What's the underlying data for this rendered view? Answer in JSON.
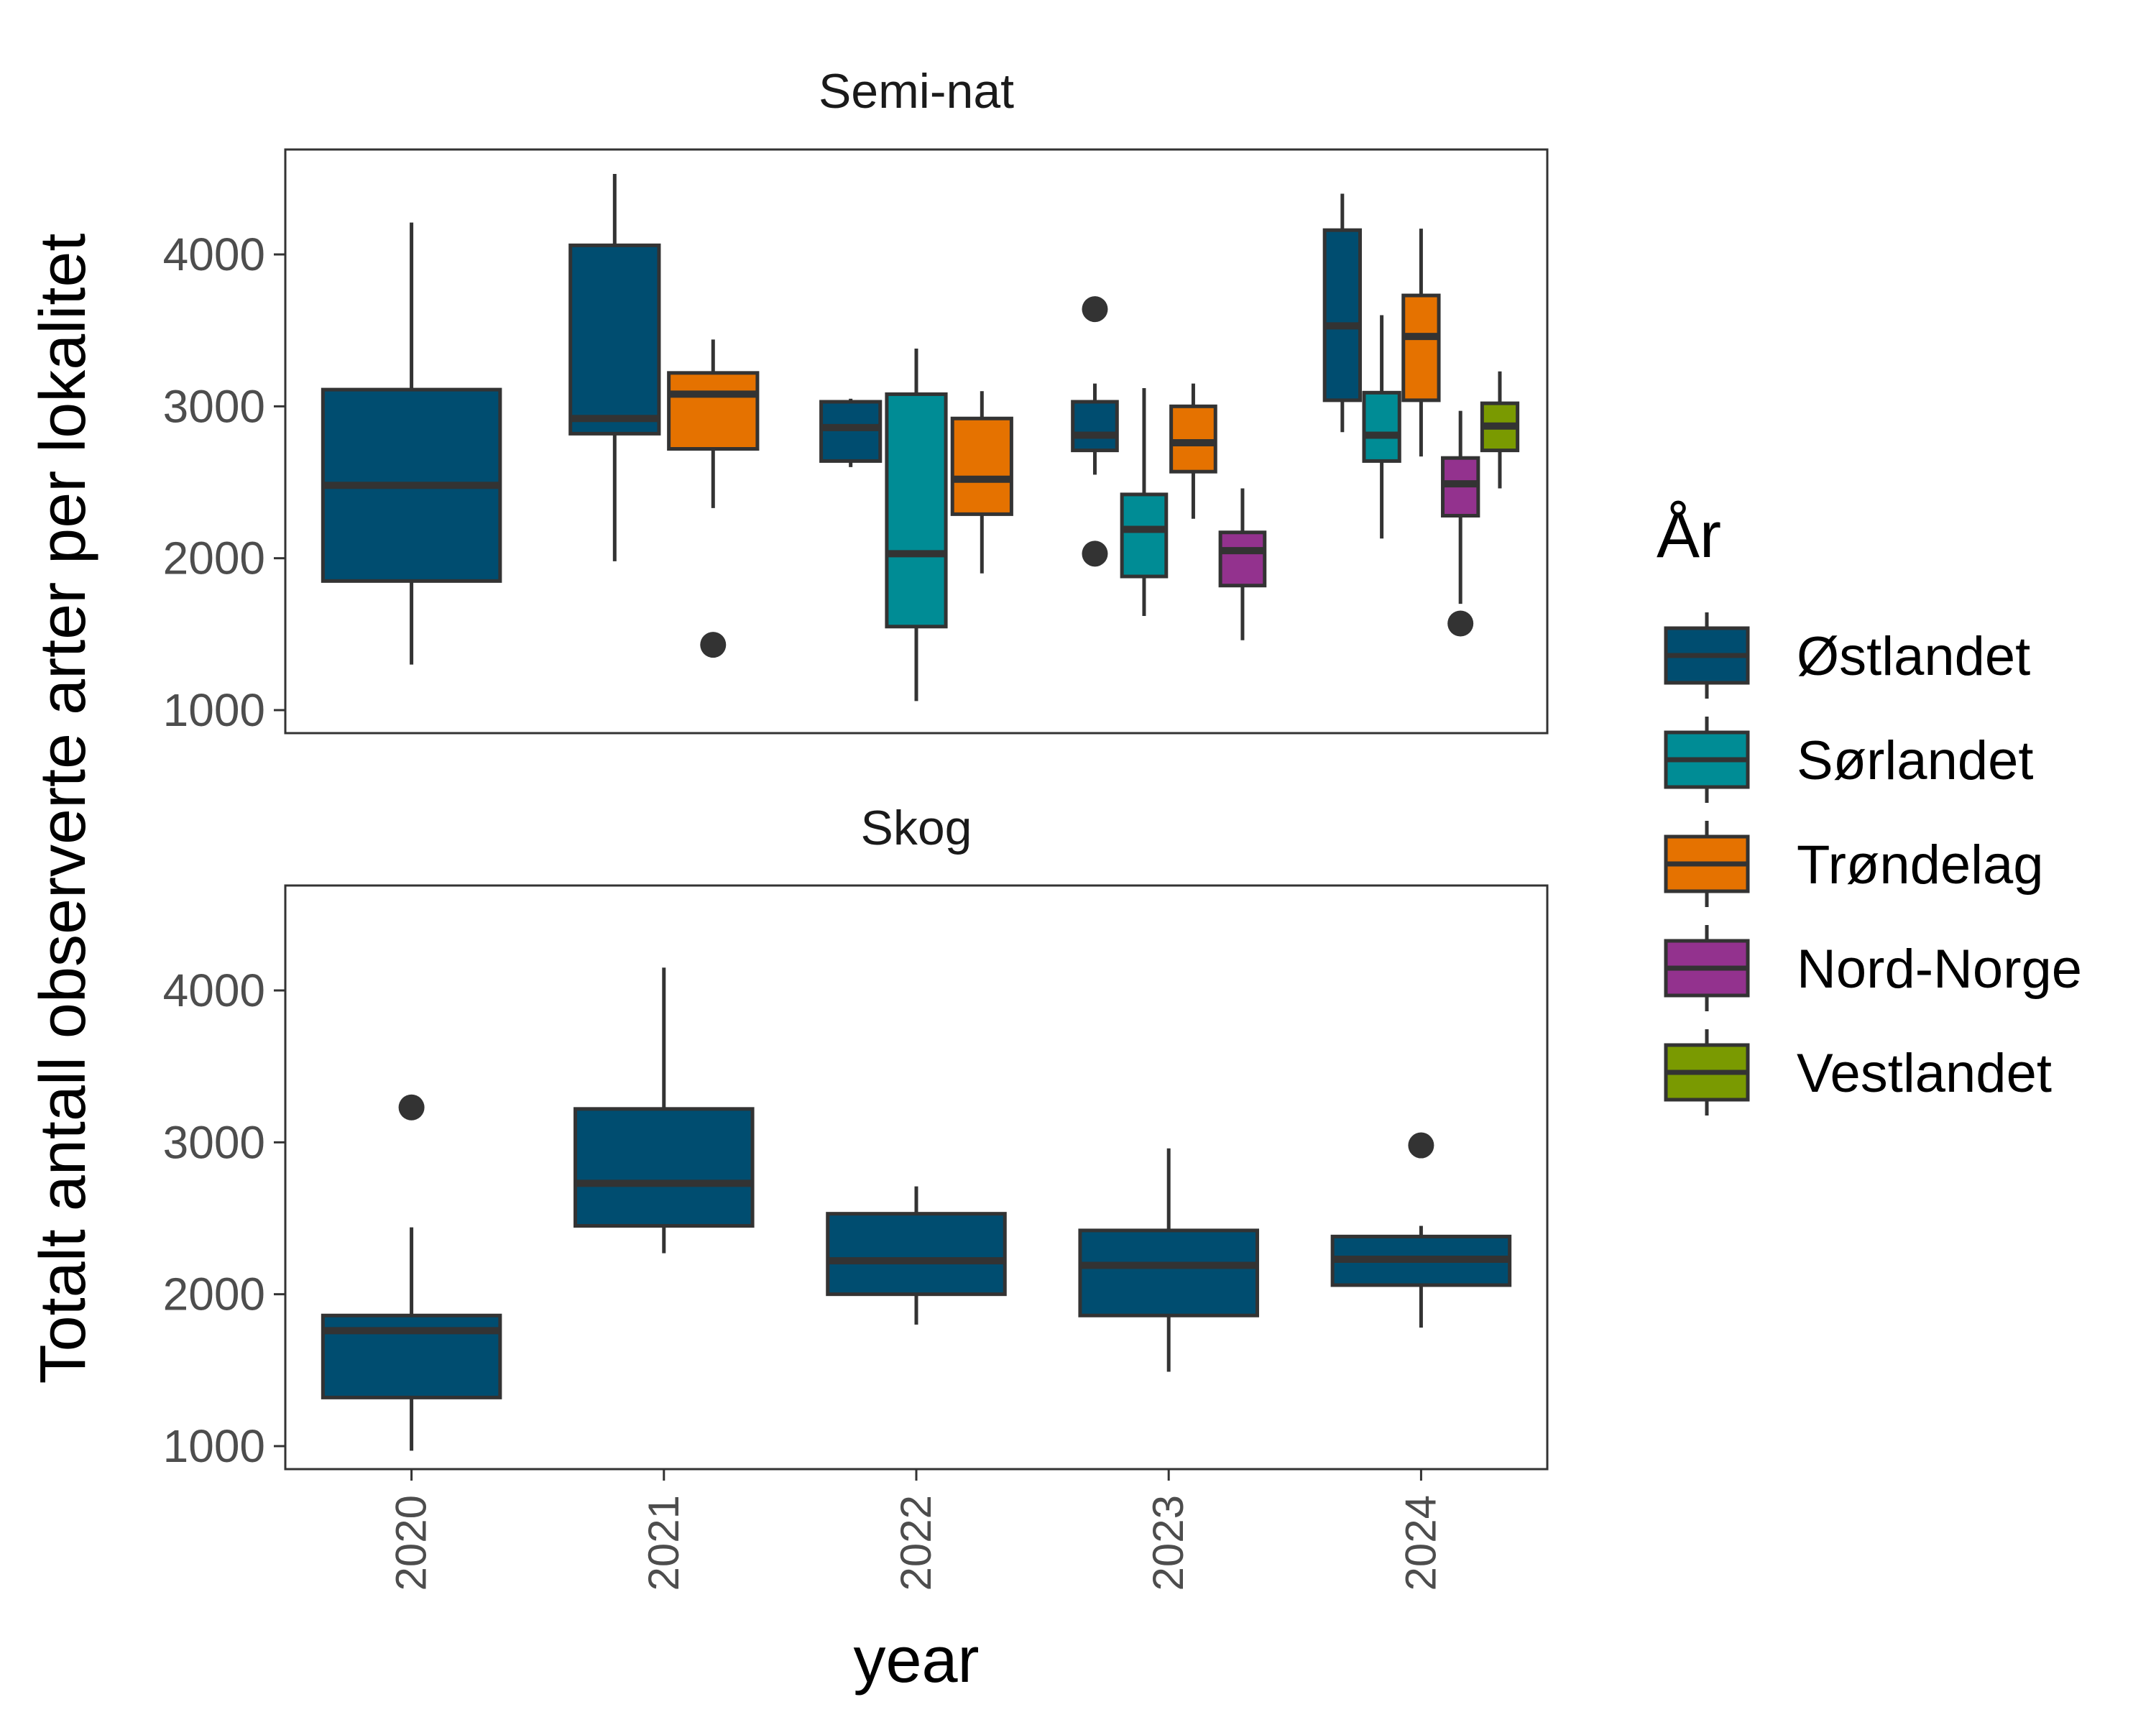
{
  "chart_data": {
    "type": "boxplot",
    "ylabel": "Totalt antall observerte arter per lokalitet",
    "xlabel": "year",
    "categories": [
      "2020",
      "2021",
      "2022",
      "2023",
      "2024"
    ],
    "yticks": [
      1000,
      2000,
      3000,
      4000
    ],
    "ylim": [
      750,
      4700
    ],
    "legend": {
      "title": "År",
      "position": "right",
      "entries": [
        {
          "label": "Østlandet",
          "color": "#004D70"
        },
        {
          "label": "Sørlandet",
          "color": "#008C95"
        },
        {
          "label": "Trøndelag",
          "color": "#E57200"
        },
        {
          "label": "Nord-Norge",
          "color": "#93328E"
        },
        {
          "label": "Vestlandet",
          "color": "#7A9A01"
        }
      ]
    },
    "grid": false,
    "panels": [
      {
        "title": "Semi-nat",
        "boxes": [
          {
            "year": "2020",
            "group": "Østlandet",
            "min": 1300,
            "q1": 1850,
            "median": 2480,
            "q3": 3110,
            "max": 4210,
            "outliers": []
          },
          {
            "year": "2021",
            "group": "Østlandet",
            "min": 1980,
            "q1": 2820,
            "median": 2920,
            "q3": 4060,
            "max": 4530,
            "outliers": []
          },
          {
            "year": "2021",
            "group": "Trøndelag",
            "min": 2330,
            "q1": 2720,
            "median": 3080,
            "q3": 3220,
            "max": 3440,
            "outliers": [
              1430
            ]
          },
          {
            "year": "2022",
            "group": "Østlandet",
            "min": 2600,
            "q1": 2640,
            "median": 2860,
            "q3": 3030,
            "max": 3050,
            "outliers": []
          },
          {
            "year": "2022",
            "group": "Sørlandet",
            "min": 1060,
            "q1": 1550,
            "median": 2030,
            "q3": 3080,
            "max": 3380,
            "outliers": []
          },
          {
            "year": "2022",
            "group": "Trøndelag",
            "min": 1900,
            "q1": 2290,
            "median": 2520,
            "q3": 2920,
            "max": 3100,
            "outliers": []
          },
          {
            "year": "2023",
            "group": "Østlandet",
            "min": 2550,
            "q1": 2710,
            "median": 2810,
            "q3": 3030,
            "max": 3150,
            "outliers": [
              3640,
              2030
            ]
          },
          {
            "year": "2023",
            "group": "Sørlandet",
            "min": 1620,
            "q1": 1880,
            "median": 2190,
            "q3": 2420,
            "max": 3120,
            "outliers": []
          },
          {
            "year": "2023",
            "group": "Trøndelag",
            "min": 2260,
            "q1": 2570,
            "median": 2760,
            "q3": 3000,
            "max": 3150,
            "outliers": []
          },
          {
            "year": "2023",
            "group": "Nord-Norge",
            "min": 1460,
            "q1": 1820,
            "median": 2050,
            "q3": 2170,
            "max": 2460,
            "outliers": []
          },
          {
            "year": "2024",
            "group": "Østlandet",
            "min": 2830,
            "q1": 3040,
            "median": 3530,
            "q3": 4160,
            "max": 4400,
            "outliers": []
          },
          {
            "year": "2024",
            "group": "Sørlandet",
            "min": 2130,
            "q1": 2640,
            "median": 2810,
            "q3": 3090,
            "max": 3600,
            "outliers": []
          },
          {
            "year": "2024",
            "group": "Trøndelag",
            "min": 2670,
            "q1": 3040,
            "median": 3460,
            "q3": 3730,
            "max": 4170,
            "outliers": []
          },
          {
            "year": "2024",
            "group": "Nord-Norge",
            "min": 1700,
            "q1": 2280,
            "median": 2490,
            "q3": 2660,
            "max": 2970,
            "outliers": [
              1570
            ]
          },
          {
            "year": "2024",
            "group": "Vestlandet",
            "min": 2460,
            "q1": 2710,
            "median": 2870,
            "q3": 3020,
            "max": 3230,
            "outliers": []
          }
        ]
      },
      {
        "title": "Skog",
        "boxes": [
          {
            "year": "2020",
            "group": "Østlandet",
            "min": 970,
            "q1": 1320,
            "median": 1760,
            "q3": 1860,
            "max": 2440,
            "outliers": [
              3230
            ]
          },
          {
            "year": "2021",
            "group": "Østlandet",
            "min": 2270,
            "q1": 2450,
            "median": 2730,
            "q3": 3220,
            "max": 4150,
            "outliers": []
          },
          {
            "year": "2022",
            "group": "Østlandet",
            "min": 1800,
            "q1": 2000,
            "median": 2220,
            "q3": 2530,
            "max": 2710,
            "outliers": []
          },
          {
            "year": "2023",
            "group": "Østlandet",
            "min": 1490,
            "q1": 1860,
            "median": 2190,
            "q3": 2420,
            "max": 2960,
            "outliers": []
          },
          {
            "year": "2024",
            "group": "Østlandet",
            "min": 1780,
            "q1": 2060,
            "median": 2230,
            "q3": 2380,
            "max": 2450,
            "outliers": [
              2980
            ]
          }
        ]
      }
    ]
  }
}
